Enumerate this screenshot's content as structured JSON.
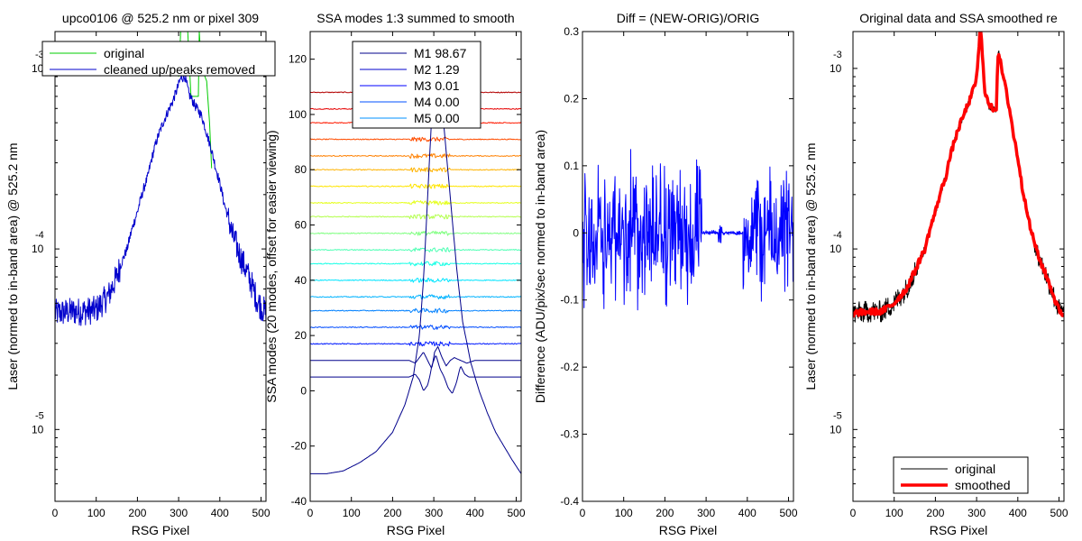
{
  "chart_data": [
    {
      "type": "line",
      "title": "upco0106 @ 525.2 nm or pixel 309",
      "xlabel": "RSG Pixel",
      "ylabel": "Laser (normed to in-band area) @ 525.2 nm",
      "xlim": [
        0,
        512
      ],
      "ylim": [
        4e-06,
        0.0016
      ],
      "yscale": "log",
      "xticks": [
        0,
        100,
        200,
        300,
        400,
        500
      ],
      "yticks": [
        {
          "value": 1e-05,
          "base": "10",
          "exp": "-5"
        },
        {
          "value": 0.0001,
          "base": "10",
          "exp": "-4"
        },
        {
          "value": 0.001,
          "base": "10",
          "exp": "-3"
        }
      ],
      "legend": {
        "position": "top",
        "entries": [
          "original",
          "cleaned up/peaks removed"
        ]
      },
      "series": [
        {
          "name": "original",
          "color": "#00cc00",
          "x": [
            300,
            305,
            310,
            312,
            315,
            320,
            322,
            330,
            340,
            348,
            350,
            355,
            360,
            368,
            375,
            380
          ],
          "y": [
            0.0009,
            0.0016,
            0.0016,
            0.0016,
            0.0016,
            0.0016,
            0.0016,
            0.0007,
            0.0007,
            0.0007,
            0.0016,
            0.00105,
            0.00095,
            0.00085,
            0.0005,
            0.00028
          ]
        },
        {
          "name": "cleaned up/peaks removed",
          "color": "#0000cc",
          "x": [
            0,
            40,
            70,
            100,
            130,
            150,
            175,
            200,
            225,
            250,
            270,
            285,
            295,
            305,
            315,
            325,
            340,
            355,
            370,
            390,
            410,
            430,
            450,
            470,
            490,
            500,
            512
          ],
          "y": [
            4.4e-05,
            4.5e-05,
            4.5e-05,
            4.6e-05,
            5.5e-05,
            7e-05,
            0.0001,
            0.00016,
            0.00025,
            0.00042,
            0.00055,
            0.00065,
            0.00075,
            0.00088,
            0.0009,
            0.00072,
            0.00062,
            0.00055,
            0.00042,
            0.00028,
            0.00018,
            0.00012,
            9e-05,
            7e-05,
            5.2e-05,
            4.8e-05,
            4.4e-05
          ]
        }
      ]
    },
    {
      "type": "line",
      "title": "SSA modes 1:3 summed to smooth",
      "xlabel": "RSG Pixel",
      "ylabel": "SSA modes (20 modes, offset for easier viewing)",
      "xlim": [
        0,
        512
      ],
      "ylim": [
        -40,
        130
      ],
      "xticks": [
        0,
        100,
        200,
        300,
        400,
        500
      ],
      "yticks": [
        -40,
        -20,
        0,
        20,
        40,
        60,
        80,
        100,
        120
      ],
      "legend": {
        "position": "top",
        "entries": [
          "M1 98.67",
          "M2 1.29",
          "M3 0.01",
          "M4 0.00",
          "M5 0.00"
        ]
      },
      "mode_offsets": [
        -30,
        5,
        11,
        17,
        23,
        29,
        34,
        40,
        46,
        51,
        57,
        63,
        68,
        74,
        80,
        85,
        91,
        97,
        102,
        108
      ],
      "mode1": {
        "x": [
          0,
          40,
          80,
          120,
          160,
          200,
          230,
          250,
          265,
          275,
          285,
          295,
          305,
          315,
          325,
          340,
          355,
          370,
          390,
          410,
          430,
          450,
          470,
          490,
          512
        ],
        "y": [
          -30,
          -30,
          -29,
          -26,
          -22,
          -15,
          -5,
          5,
          20,
          40,
          70,
          100,
          115,
          110,
          95,
          70,
          45,
          25,
          10,
          0,
          -8,
          -15,
          -20,
          -25,
          -30
        ]
      },
      "mode2": {
        "x": [
          0,
          220,
          240,
          255,
          265,
          275,
          285,
          290,
          295,
          305,
          315,
          325,
          335,
          345,
          355,
          365,
          375,
          385,
          400,
          420,
          512
        ],
        "y": [
          5,
          5,
          5,
          6,
          4,
          0,
          2,
          5,
          9,
          13,
          8,
          5,
          1,
          -1,
          3,
          9,
          6,
          5,
          5,
          5,
          5
        ]
      },
      "mode3": {
        "x": [
          0,
          220,
          240,
          255,
          265,
          275,
          285,
          295,
          302,
          310,
          320,
          330,
          340,
          350,
          365,
          380,
          400,
          420,
          512
        ],
        "y": [
          11,
          11,
          11,
          10,
          12,
          14,
          11,
          8,
          14,
          16,
          12,
          9,
          11,
          12,
          11,
          10,
          11,
          11,
          11
        ]
      }
    },
    {
      "type": "line",
      "title": "Diff = (NEW-ORIG)/ORIG",
      "xlabel": "RSG Pixel",
      "ylabel": "Difference (ADU/pix/sec normed to in-band area)",
      "xlim": [
        0,
        512
      ],
      "ylim": [
        -0.4,
        0.3
      ],
      "xticks": [
        0,
        100,
        200,
        300,
        400,
        500
      ],
      "yticks": [
        -0.4,
        -0.3,
        -0.2,
        -0.1,
        0,
        0.1,
        0.2,
        0.3
      ],
      "series": [
        {
          "name": "",
          "color": "#0000ff",
          "noise_segments": [
            [
              0,
              290,
              0.12
            ],
            [
              290,
              330,
              0.004
            ],
            [
              330,
              340,
              0.02
            ],
            [
              340,
              390,
              0.003
            ],
            [
              390,
              512,
              0.11
            ]
          ]
        }
      ]
    },
    {
      "type": "line",
      "title": "Original data and SSA smoothed re",
      "xlabel": "RSG Pixel",
      "ylabel": "Laser (normed to in-band area) @ 525.2 nm",
      "xlim": [
        0,
        512
      ],
      "ylim": [
        4e-06,
        0.0016
      ],
      "yscale": "log",
      "xticks": [
        0,
        100,
        200,
        300,
        400,
        500
      ],
      "yticks": [
        {
          "value": 1e-05,
          "base": "10",
          "exp": "-5"
        },
        {
          "value": 0.0001,
          "base": "10",
          "exp": "-4"
        },
        {
          "value": 0.001,
          "base": "10",
          "exp": "-3"
        }
      ],
      "legend": {
        "position": "bottom-right",
        "entries": [
          "original",
          "smoothed"
        ]
      },
      "series": [
        {
          "name": "smoothed",
          "color": "#ff0000",
          "x": [
            0,
            40,
            70,
            100,
            130,
            150,
            175,
            200,
            225,
            250,
            270,
            285,
            295,
            300,
            305,
            308,
            310,
            315,
            320,
            330,
            340,
            348,
            352,
            355,
            360,
            375,
            390,
            410,
            430,
            450,
            470,
            490,
            500,
            512
          ],
          "y": [
            4.4e-05,
            4.5e-05,
            4.5e-05,
            5e-05,
            6e-05,
            7.5e-05,
            0.0001,
            0.00016,
            0.00025,
            0.00042,
            0.00056,
            0.00068,
            0.0008,
            0.0009,
            0.0012,
            0.0016,
            0.0016,
            0.0011,
            0.00075,
            0.00062,
            0.0006,
            0.0006,
            0.0012,
            0.0012,
            0.001,
            0.00068,
            0.00042,
            0.00022,
            0.00013,
            9e-05,
            7e-05,
            5.2e-05,
            4.6e-05,
            4.3e-05
          ]
        },
        {
          "name": "original",
          "color": "#000000",
          "follows": "smoothed"
        }
      ]
    }
  ]
}
